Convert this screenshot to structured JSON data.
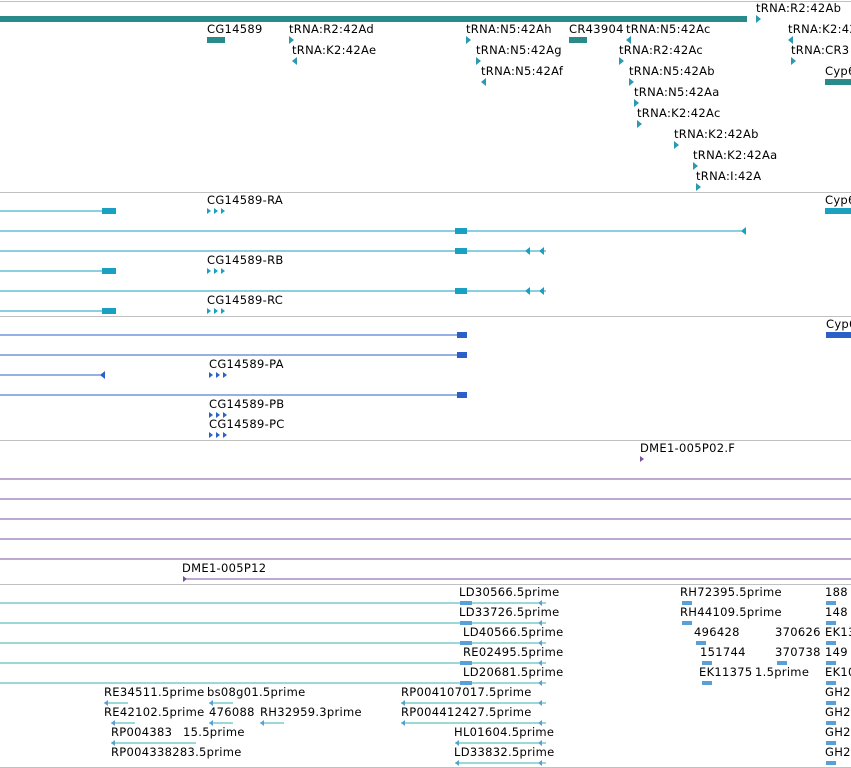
{
  "colors": {
    "gene": "#2a8a8a",
    "trna": "#2a9ab0",
    "transcript": "#1aa0c0",
    "protein": "#2a60c8",
    "insertion": "#7a50a0",
    "est": "#5aa0d8",
    "est_line": "#3ab0b0",
    "separator": "#c0c0c0"
  },
  "gene_track": {
    "labels": [
      "tRNA:R2:42Ab",
      "CG14589",
      "tRNA:R2:42Ad",
      "tRNA:N5:42Ah",
      "CR43904",
      "tRNA:N5:42Ac",
      "tRNA:K2:42",
      "tRNA:K2:42Ae",
      "tRNA:N5:42Ag",
      "tRNA:R2:42Ac",
      "tRNA:CR3",
      "tRNA:N5:42Af",
      "tRNA:N5:42Ab",
      "Cyp6",
      "tRNA:N5:42Aa",
      "tRNA:K2:42Ac",
      "tRNA:K2:42Ab",
      "tRNA:K2:42Aa",
      "tRNA:I:42A"
    ]
  },
  "transcript_track": {
    "labels": [
      "CG14589-RA",
      "Cyp6",
      "CG14589-RB",
      "CG14589-RC"
    ]
  },
  "protein_track": {
    "labels": [
      "Cyp6",
      "CG14589-PA",
      "CG14589-PB",
      "CG14589-PC"
    ]
  },
  "insertion_track": {
    "labels": [
      "DME1-005P02.F",
      "DME1-005P12"
    ]
  },
  "est_track": {
    "labels": [
      "LD30566.5prime",
      "RH72395.5prime",
      "188",
      "LD33726.5prime",
      "RH44109.5prime",
      "148",
      "LD40566.5prime",
      "496428",
      "370626",
      "EK13",
      "RE02495.5prime",
      "151744",
      "370738",
      "149",
      "LD20681.5prime",
      "EK11375",
      "1.5prime",
      "EK10",
      "RE34511.5prime",
      "bs08g01.5prime",
      "RP004107017.5prime",
      "GH2",
      "RE42102.5prime",
      "476088",
      "RH32959.3prime",
      "RP004412427.5prime",
      "GH2",
      "RP004383",
      "15.5prime",
      "HL01604.5prime",
      "GH2",
      "RP004338283.5prime",
      "LD33832.5prime",
      "GH2"
    ]
  }
}
